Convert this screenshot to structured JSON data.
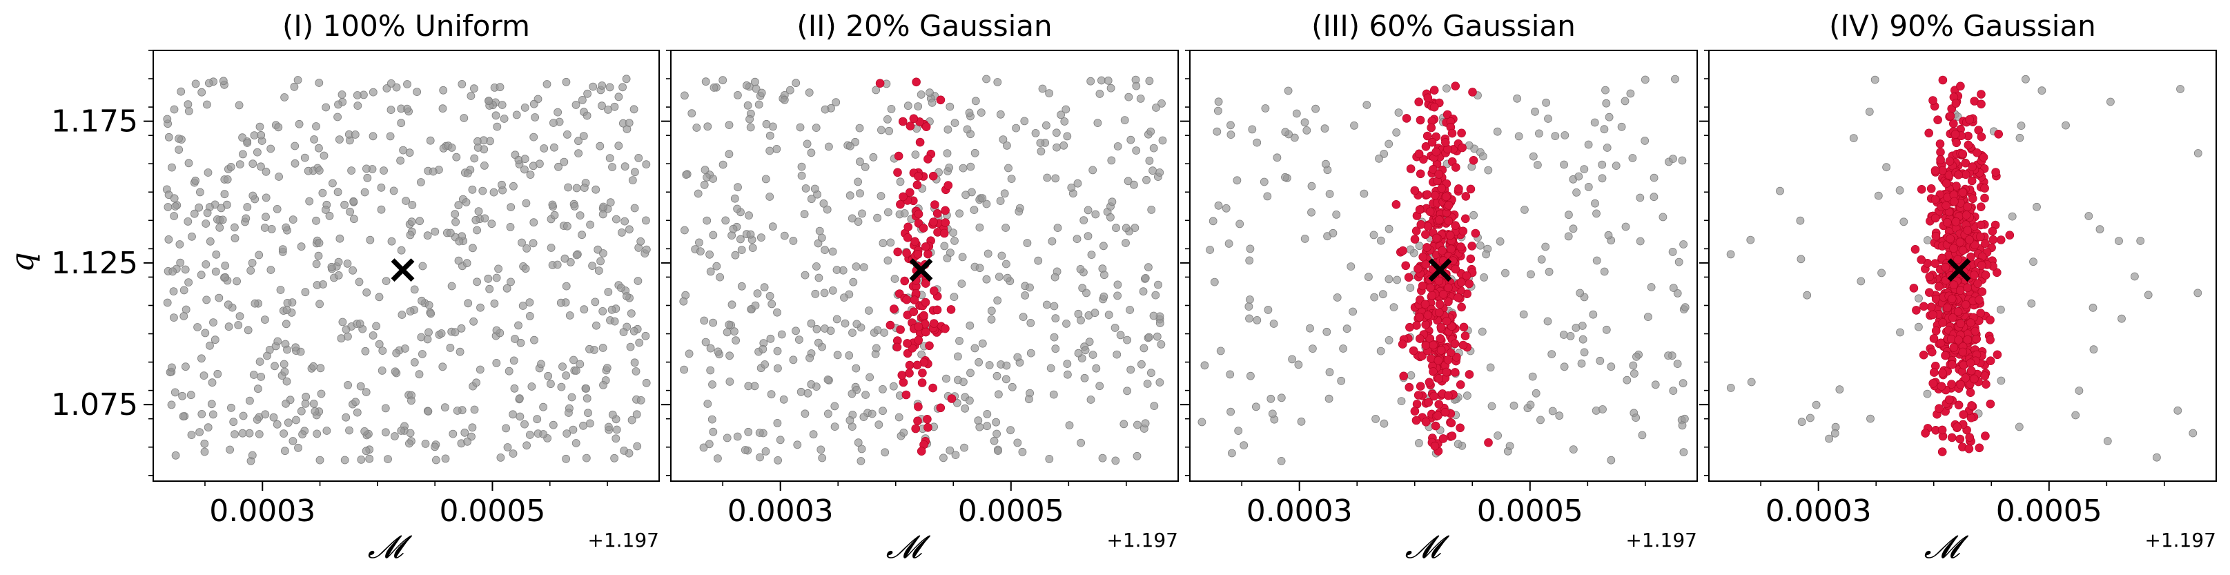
{
  "figure": {
    "panel_titles": [
      "(I) 100% Uniform",
      "(II) 20% Gaussian",
      "(III) 60% Gaussian",
      "(IV) 90% Gaussian"
    ],
    "ylabel": "q",
    "xlabel": "𝓜",
    "x_offset_label": "+1.197"
  },
  "chart_data": [
    {
      "type": "scatter",
      "title": "(I) 100% Uniform",
      "xlabel": "𝓜",
      "ylabel": "q",
      "x_offset": 1.197,
      "x_ticks": [
        0.0003,
        0.0005
      ],
      "x_tick_labels": [
        "0.0003",
        "0.0005"
      ],
      "y_ticks": [
        1.075,
        1.125,
        1.175
      ],
      "y_tick_labels": [
        "1.075",
        "1.125",
        "1.175"
      ],
      "xlim": [
        0.000205,
        0.000645
      ],
      "ylim": [
        1.048,
        1.2
      ],
      "grid": false,
      "background_color": "#999999",
      "gaussian_color": "#dc143c",
      "injection": {
        "x": 0.000422,
        "y": 1.1225,
        "color": "#000000"
      },
      "background_points": {
        "count": 700,
        "x_range": [
          0.000215,
          0.000635
        ],
        "y_range": [
          1.055,
          1.19
        ],
        "distribution": "uniform"
      },
      "gaussian_points": {
        "count": 0
      }
    },
    {
      "type": "scatter",
      "title": "(II) 20% Gaussian",
      "xlabel": "𝓜",
      "x_offset": 1.197,
      "x_ticks": [
        0.0003,
        0.0005
      ],
      "x_tick_labels": [
        "0.0003",
        "0.0005"
      ],
      "y_ticks": [
        1.075,
        1.125,
        1.175
      ],
      "xlim": [
        0.000205,
        0.000645
      ],
      "ylim": [
        1.048,
        1.2
      ],
      "grid": false,
      "background_color": "#999999",
      "gaussian_color": "#dc143c",
      "injection": {
        "x": 0.000422,
        "y": 1.1225,
        "color": "#000000"
      },
      "background_points": {
        "count": 560,
        "x_range": [
          0.000215,
          0.000635
        ],
        "y_range": [
          1.055,
          1.19
        ],
        "distribution": "uniform"
      },
      "gaussian_points": {
        "count": 140,
        "x_mean": 0.000422,
        "x_std": 1.2e-05,
        "y_mean": 1.12,
        "y_std": 0.032,
        "y_range": [
          1.058,
          1.19
        ]
      }
    },
    {
      "type": "scatter",
      "title": "(III) 60% Gaussian",
      "xlabel": "𝓜",
      "x_offset": 1.197,
      "x_ticks": [
        0.0003,
        0.0005
      ],
      "x_tick_labels": [
        "0.0003",
        "0.0005"
      ],
      "y_ticks": [
        1.075,
        1.125,
        1.175
      ],
      "xlim": [
        0.000205,
        0.000645
      ],
      "ylim": [
        1.048,
        1.2
      ],
      "grid": false,
      "background_color": "#999999",
      "gaussian_color": "#dc143c",
      "injection": {
        "x": 0.000422,
        "y": 1.1225,
        "color": "#000000"
      },
      "background_points": {
        "count": 280,
        "x_range": [
          0.000215,
          0.000635
        ],
        "y_range": [
          1.055,
          1.19
        ],
        "distribution": "uniform"
      },
      "gaussian_points": {
        "count": 420,
        "x_mean": 0.000422,
        "x_std": 1.3e-05,
        "y_mean": 1.12,
        "y_std": 0.032,
        "y_range": [
          1.058,
          1.19
        ]
      }
    },
    {
      "type": "scatter",
      "title": "(IV) 90% Gaussian",
      "xlabel": "𝓜",
      "x_offset": 1.197,
      "x_ticks": [
        0.0003,
        0.0005
      ],
      "x_tick_labels": [
        "0.0003",
        "0.0005"
      ],
      "y_ticks": [
        1.075,
        1.125,
        1.175
      ],
      "xlim": [
        0.000205,
        0.000645
      ],
      "ylim": [
        1.048,
        1.2
      ],
      "grid": false,
      "background_color": "#999999",
      "gaussian_color": "#dc143c",
      "injection": {
        "x": 0.000422,
        "y": 1.1225,
        "color": "#000000"
      },
      "background_points": {
        "count": 70,
        "x_range": [
          0.000215,
          0.000635
        ],
        "y_range": [
          1.055,
          1.19
        ],
        "distribution": "uniform"
      },
      "gaussian_points": {
        "count": 630,
        "x_mean": 0.000422,
        "x_std": 1.3e-05,
        "y_mean": 1.12,
        "y_std": 0.032,
        "y_range": [
          1.058,
          1.19
        ]
      }
    }
  ]
}
